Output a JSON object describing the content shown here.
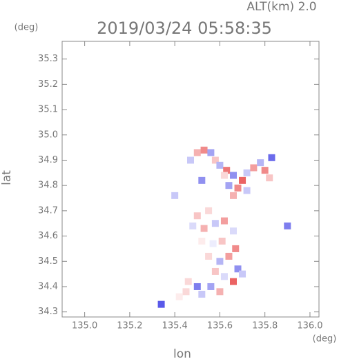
{
  "chart_data": {
    "type": "scatter",
    "title": "2019/03/24 05:58:35",
    "subtitle": "ALT(km) 2.0",
    "ylabel_unit": "(deg)",
    "xlabel_unit": "(deg)",
    "xlabel": "lon",
    "ylabel": "lat",
    "xlim": [
      134.9,
      136.04
    ],
    "ylim": [
      34.28,
      35.37
    ],
    "xticks": [
      {
        "value": 135.0,
        "label": "135.0"
      },
      {
        "value": 135.2,
        "label": "135.2"
      },
      {
        "value": 135.4,
        "label": "135.4"
      },
      {
        "value": 135.6,
        "label": "135.6"
      },
      {
        "value": 135.8,
        "label": "135.8"
      },
      {
        "value": 136.0,
        "label": "136.0"
      }
    ],
    "yticks": [
      {
        "value": 34.3,
        "label": "34.3"
      },
      {
        "value": 34.4,
        "label": "34.4"
      },
      {
        "value": 34.5,
        "label": "34.5"
      },
      {
        "value": 34.6,
        "label": "34.6"
      },
      {
        "value": 34.7,
        "label": "34.7"
      },
      {
        "value": 34.8,
        "label": "34.8"
      },
      {
        "value": 34.9,
        "label": "34.9"
      },
      {
        "value": 35.0,
        "label": "35.0"
      },
      {
        "value": 35.1,
        "label": "35.1"
      },
      {
        "value": 35.2,
        "label": "35.2"
      },
      {
        "value": 35.3,
        "label": "35.3"
      }
    ],
    "color_positive": "#e63c3c",
    "color_negative": "#4646e6",
    "x": [
      135.47,
      135.5,
      135.53,
      135.56,
      135.58,
      135.6,
      135.63,
      135.66,
      135.7,
      135.72,
      135.75,
      135.78,
      135.8,
      135.83,
      135.82,
      135.68,
      135.64,
      135.66,
      135.72,
      135.62,
      135.52,
      135.4,
      135.5,
      135.55,
      135.48,
      135.53,
      135.58,
      135.62,
      135.66,
      135.52,
      135.57,
      135.61,
      135.55,
      135.6,
      135.64,
      135.68,
      135.58,
      135.62,
      135.66,
      135.56,
      135.5,
      135.45,
      135.52,
      135.6,
      135.34,
      135.42,
      135.46,
      135.7,
      135.9,
      135.67
    ],
    "y": [
      34.9,
      34.93,
      34.94,
      34.93,
      34.9,
      34.88,
      34.86,
      34.84,
      34.82,
      34.85,
      34.87,
      34.89,
      34.86,
      34.91,
      34.83,
      34.79,
      34.8,
      34.76,
      34.78,
      34.84,
      34.82,
      34.76,
      34.68,
      34.7,
      34.64,
      34.63,
      34.65,
      34.66,
      34.62,
      34.58,
      34.57,
      34.58,
      34.52,
      34.5,
      34.52,
      34.47,
      34.46,
      34.44,
      34.42,
      34.4,
      34.4,
      34.38,
      34.37,
      34.38,
      34.33,
      34.36,
      34.42,
      34.45,
      34.64,
      34.55
    ],
    "values": [
      -0.3,
      0.4,
      0.6,
      -0.5,
      0.3,
      -0.4,
      0.7,
      -0.6,
      0.8,
      -0.3,
      0.5,
      -0.4,
      0.6,
      -0.8,
      0.3,
      0.6,
      -0.5,
      0.4,
      -0.3,
      0.2,
      -0.6,
      -0.3,
      0.3,
      0.2,
      -0.2,
      0.4,
      -0.3,
      0.5,
      -0.2,
      0.1,
      -0.1,
      0.3,
      0.2,
      -0.4,
      0.5,
      -0.6,
      0.3,
      -0.2,
      0.8,
      -0.5,
      -0.7,
      0.2,
      -0.3,
      0.4,
      -0.9,
      0.1,
      0.2,
      -0.3,
      -0.7,
      0.6
    ]
  }
}
